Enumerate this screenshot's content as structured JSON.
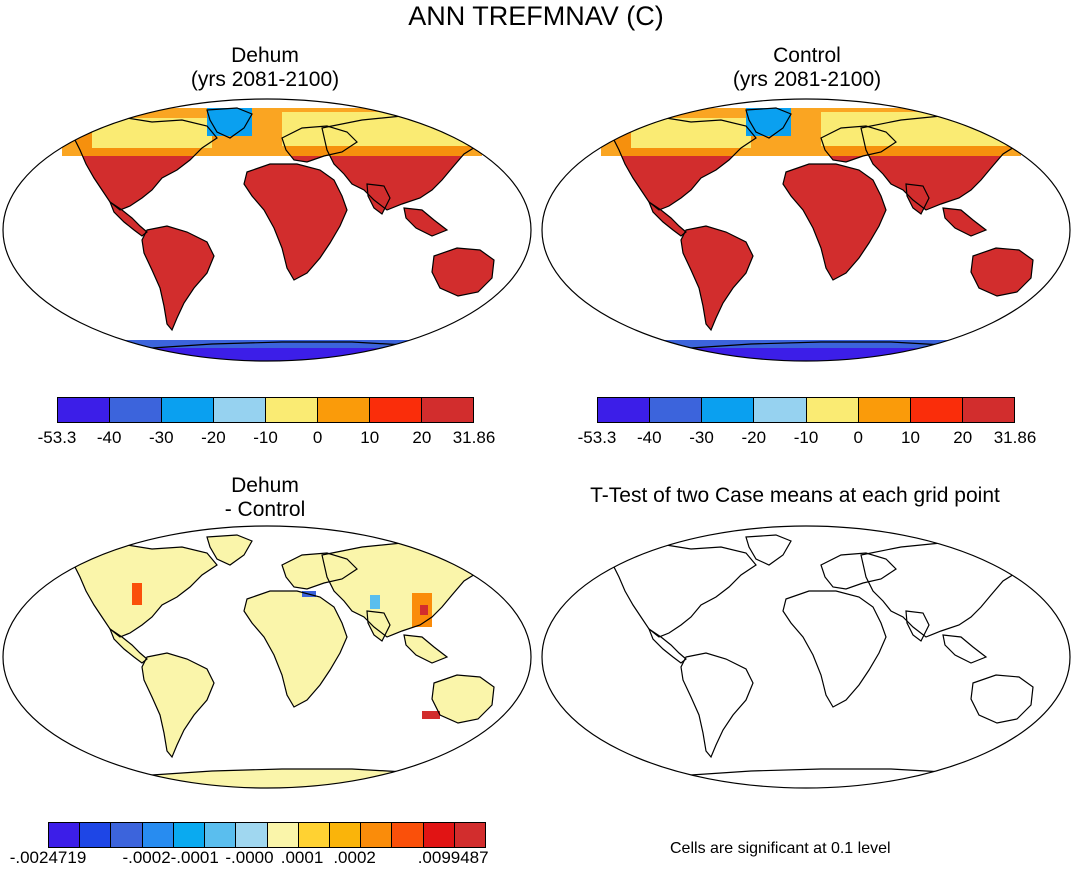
{
  "title": "ANN TREFMNAV (C)",
  "panels": {
    "top_left": {
      "title_line1": "Dehum",
      "title_line2": "(yrs 2081-2100)"
    },
    "top_right": {
      "title_line1": "Control",
      "title_line2": "(yrs 2081-2100)"
    },
    "bottom_left": {
      "title_line1": "Dehum",
      "title_line2": "- Control"
    },
    "bottom_right": {
      "title": "T-Test of two Case means at each grid point"
    }
  },
  "colorbars": {
    "main": {
      "colors": [
        "#3c1ee8",
        "#3c64dc",
        "#0aa0f0",
        "#96d2f0",
        "#faeb73",
        "#fa9b0a",
        "#fa2d0a",
        "#d22d2d"
      ],
      "labels": [
        "-53.3",
        "-40",
        "-30",
        "-20",
        "-10",
        "0",
        "10",
        "20",
        "31.86"
      ]
    },
    "diff": {
      "colors": [
        "#3c1ee8",
        "#1e46e6",
        "#3c64dc",
        "#288cf0",
        "#0aaaf0",
        "#5abeee",
        "#a0d7f0",
        "#faf5aa",
        "#ffd232",
        "#fab40a",
        "#fa8c0a",
        "#fa500a",
        "#e11414",
        "#d22d2d"
      ],
      "labels": [
        "-.0024719",
        "-.0002",
        "-.0001",
        "-.0000",
        ".0001",
        ".0002",
        ".0099487"
      ]
    }
  },
  "significance_note": "Cells are significant at 0.1 level"
}
